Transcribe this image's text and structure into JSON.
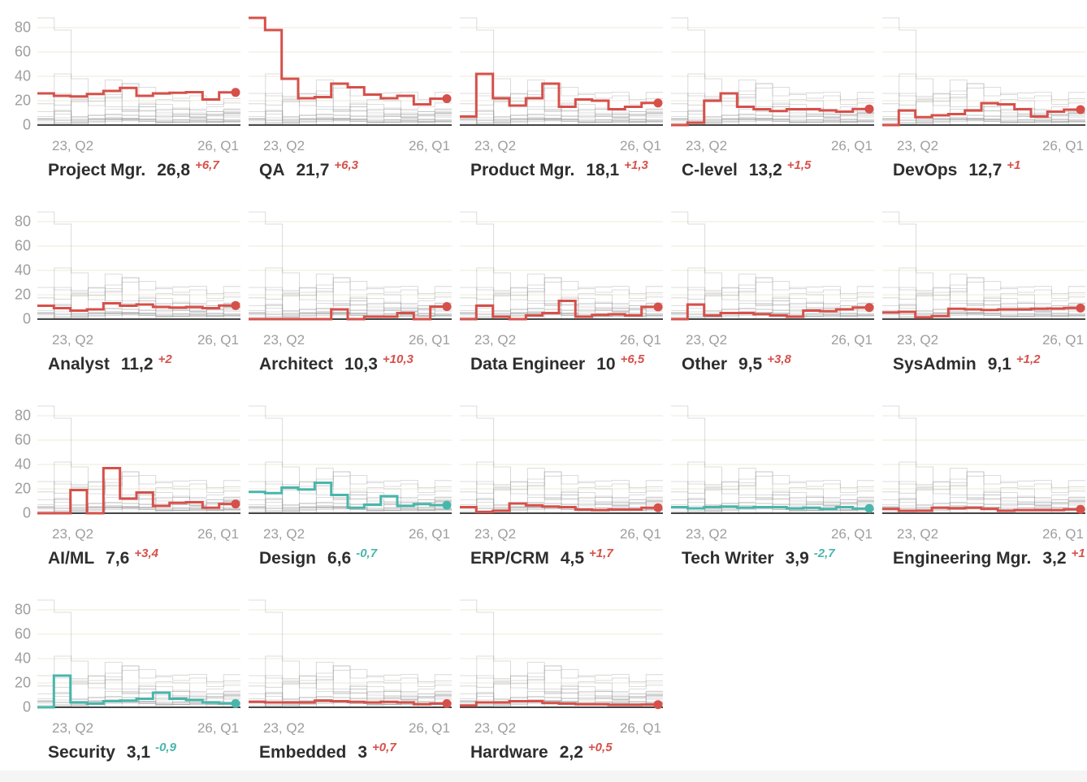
{
  "colors": {
    "accent_up": "#d6504a",
    "accent_down": "#49b6ab",
    "grid_line": "#efe8d8",
    "baseline": "#454545",
    "axis_text": "#9e9e9e",
    "series_grey": "#9a9a9a",
    "title_text": "#2e2e2e",
    "footer_band": "#f5f5f6"
  },
  "chart_data": {
    "type": "line",
    "subtype": "step-small-multiples",
    "title": "",
    "xlabel": "",
    "ylabel": "",
    "x_range": [
      "23, Q2",
      "26, Q1"
    ],
    "y_ticks": [
      0,
      20,
      40,
      60,
      80
    ],
    "ylim": [
      0,
      88
    ],
    "grid": "horizontal",
    "legend": "none",
    "background_series": "all other series drawn in light grey in每 panel",
    "series": [
      {
        "name": "Project Mgr.",
        "value_label": "26,8",
        "delta_label": "+6,7",
        "direction": "up",
        "values": [
          26,
          24,
          23.5,
          25.5,
          28,
          30.5,
          24,
          26,
          26.5,
          27,
          21,
          26.8
        ]
      },
      {
        "name": "QA",
        "value_label": "21,7",
        "delta_label": "+6,3",
        "direction": "up",
        "values": [
          88,
          78,
          38,
          22,
          23,
          34,
          31,
          25,
          22,
          24,
          17,
          21.7
        ]
      },
      {
        "name": "Product Mgr.",
        "value_label": "18,1",
        "delta_label": "+1,3",
        "direction": "up",
        "values": [
          7,
          42,
          22,
          16,
          22,
          34,
          15,
          21,
          20,
          13,
          15,
          18.1
        ]
      },
      {
        "name": "C-level",
        "value_label": "13,2",
        "delta_label": "+1,5",
        "direction": "up",
        "values": [
          0,
          2,
          20,
          26,
          15,
          13,
          11.5,
          13,
          13,
          12,
          11,
          13.2
        ]
      },
      {
        "name": "DevOps",
        "value_label": "12,7",
        "delta_label": "+1",
        "direction": "up",
        "values": [
          0,
          12,
          6.5,
          8,
          9,
          12,
          18,
          17,
          13,
          7,
          11,
          12.7
        ]
      },
      {
        "name": "Analyst",
        "value_label": "11,2",
        "delta_label": "+2",
        "direction": "up",
        "values": [
          11,
          9,
          7,
          8,
          13,
          11,
          12,
          10,
          9.5,
          10,
          9,
          11.2
        ]
      },
      {
        "name": "Architect",
        "value_label": "10,3",
        "delta_label": "+10,3",
        "direction": "up",
        "values": [
          0,
          0,
          0,
          0,
          0,
          8,
          0,
          2,
          2,
          5,
          0,
          10.3
        ]
      },
      {
        "name": "Data Engineer",
        "value_label": "10",
        "delta_label": "+6,5",
        "direction": "up",
        "values": [
          0,
          11,
          2,
          0,
          3,
          5,
          15,
          2,
          3.5,
          4,
          3,
          10
        ]
      },
      {
        "name": "Other",
        "value_label": "9,5",
        "delta_label": "+3,8",
        "direction": "up",
        "values": [
          0,
          12,
          3,
          5,
          5,
          4,
          3,
          2,
          7,
          6.5,
          8,
          9.5
        ]
      },
      {
        "name": "SysAdmin",
        "value_label": "9,1",
        "delta_label": "+1,2",
        "direction": "up",
        "values": [
          5.5,
          6,
          1.5,
          2.5,
          8.5,
          8,
          7.5,
          8,
          8,
          8.5,
          8.7,
          9.1
        ]
      },
      {
        "name": "AI/ML",
        "value_label": "7,6",
        "delta_label": "+3,4",
        "direction": "up",
        "values": [
          0,
          0,
          19,
          0,
          37,
          12,
          17,
          6,
          8.5,
          9,
          4.5,
          7.6
        ]
      },
      {
        "name": "Design",
        "value_label": "6,6",
        "delta_label": "-0,7",
        "direction": "down",
        "values": [
          17.5,
          16.5,
          21,
          19.5,
          25,
          15,
          4.5,
          7,
          14,
          6,
          7.5,
          6.6
        ]
      },
      {
        "name": "ERP/CRM",
        "value_label": "4,5",
        "delta_label": "+1,7",
        "direction": "up",
        "values": [
          5,
          1,
          2,
          8,
          6.5,
          5.5,
          5,
          3,
          2.5,
          3,
          3,
          4.5
        ]
      },
      {
        "name": "Tech Writer",
        "value_label": "3,9",
        "delta_label": "-2,7",
        "direction": "down",
        "values": [
          5,
          4,
          5,
          5.5,
          4.5,
          5,
          5,
          4,
          4.5,
          3.5,
          5,
          3.9
        ]
      },
      {
        "name": "Engineering Mgr.",
        "value_label": "3,2",
        "delta_label": "+1",
        "direction": "up",
        "values": [
          3.5,
          2,
          2,
          4.5,
          4,
          4.5,
          3.5,
          2,
          2.5,
          2.5,
          2.5,
          3.2
        ]
      },
      {
        "name": "Security",
        "value_label": "3,1",
        "delta_label": "-0,9",
        "direction": "down",
        "values": [
          0,
          26,
          4,
          3,
          5,
          5.5,
          7,
          12,
          7,
          6,
          4,
          3.1
        ]
      },
      {
        "name": "Embedded",
        "value_label": "3",
        "delta_label": "+0,7",
        "direction": "up",
        "values": [
          4.5,
          4,
          4,
          4,
          5.5,
          5,
          4.5,
          4,
          4.5,
          4,
          2.5,
          3
        ]
      },
      {
        "name": "Hardware",
        "value_label": "2,2",
        "delta_label": "+0,5",
        "direction": "up",
        "values": [
          1.5,
          4,
          4,
          5,
          5,
          3.5,
          3,
          2.5,
          2.5,
          2,
          2,
          2.2
        ]
      }
    ]
  }
}
